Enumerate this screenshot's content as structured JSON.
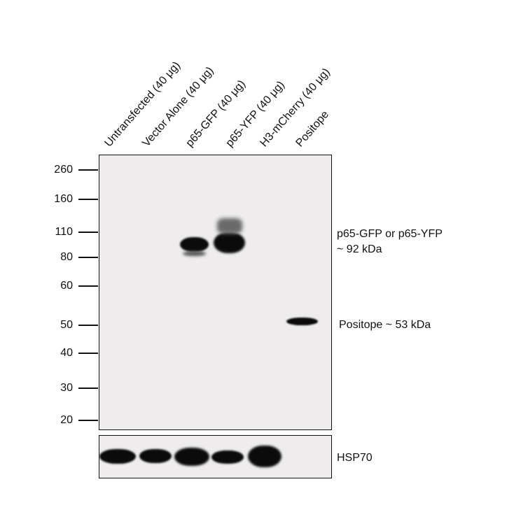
{
  "lanes": [
    {
      "label": "Untransfected (40 μg)"
    },
    {
      "label": "Vector Alone (40 μg)"
    },
    {
      "label": "p65-GFP (40 μg)"
    },
    {
      "label": "p65-YFP (40 μg)"
    },
    {
      "label": "H3-mCherry (40 μg)"
    },
    {
      "label": "Positope"
    }
  ],
  "markers": [
    "260",
    "160",
    "110",
    "80",
    "60",
    "50",
    "40",
    "30",
    "20"
  ],
  "annotations": {
    "p65_line1": "p65-GFP or p65-YFP",
    "p65_line2": "~ 92 kDa",
    "positope": "Positope ~ 53 kDa",
    "loading_control": "HSP70"
  }
}
